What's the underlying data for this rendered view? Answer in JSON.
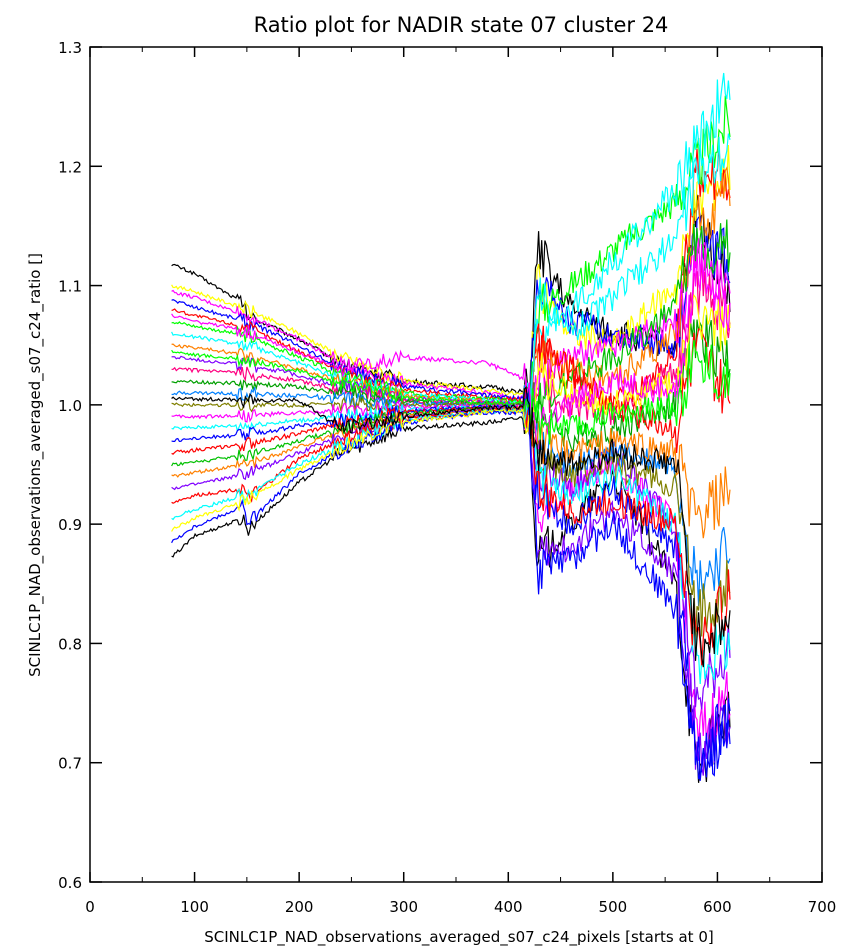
{
  "chart_data": {
    "type": "line",
    "title": "Ratio plot for NADIR state 07 cluster 24",
    "xlabel": "SCINLC1P_NAD_observations_averaged_s07_c24_pixels [starts at 0]",
    "ylabel": "SCINLC1P_NAD_observations_averaged_s07_c24_ratio []",
    "xlim": [
      0,
      700
    ],
    "ylim": [
      0.6,
      1.3
    ],
    "xticks": [
      0,
      100,
      200,
      300,
      400,
      500,
      600,
      700
    ],
    "yticks": [
      0.6,
      0.7,
      0.8,
      0.9,
      1.0,
      1.1,
      1.2,
      1.3
    ],
    "x_tick_labels": [
      "0",
      "100",
      "200",
      "300",
      "400",
      "500",
      "600",
      "700"
    ],
    "y_tick_labels": [
      "0.6",
      "0.7",
      "0.8",
      "0.9",
      "1.0",
      "1.1",
      "1.2",
      "1.3"
    ],
    "grid": false,
    "x_range_of_data": [
      78,
      612
    ],
    "series": [
      {
        "color": "#000000",
        "x": [
          78,
          100,
          147,
          150,
          200,
          240,
          300,
          380,
          420,
          428,
          460,
          500,
          560,
          580,
          612
        ],
        "y": [
          1.118,
          1.11,
          1.085,
          1.075,
          1.055,
          1.035,
          1.02,
          1.015,
          1.01,
          1.13,
          1.08,
          1.06,
          1.05,
          1.16,
          1.1
        ]
      },
      {
        "color": "#000000",
        "x": [
          78,
          100,
          147,
          150,
          200,
          240,
          300,
          380,
          420,
          428,
          460,
          500,
          560,
          580,
          612
        ],
        "y": [
          0.872,
          0.89,
          0.905,
          0.895,
          0.935,
          0.96,
          0.98,
          0.985,
          0.99,
          0.87,
          0.9,
          0.94,
          0.85,
          0.69,
          0.75
        ]
      },
      {
        "color": "#ffff00",
        "x": [
          78,
          100,
          150,
          200,
          240,
          300,
          380,
          420,
          428,
          460,
          500,
          560,
          580,
          612
        ],
        "y": [
          1.1,
          1.095,
          1.08,
          1.06,
          1.04,
          1.02,
          1.012,
          1.008,
          1.1,
          1.06,
          1.05,
          1.1,
          1.17,
          1.2
        ]
      },
      {
        "color": "#ff00ff",
        "x": [
          78,
          100,
          150,
          200,
          240,
          300,
          380,
          420,
          428,
          460,
          500,
          560,
          580,
          612
        ],
        "y": [
          1.095,
          1.09,
          1.075,
          1.055,
          1.035,
          1.018,
          1.01,
          1.005,
          0.9,
          0.93,
          0.95,
          0.9,
          0.72,
          0.76
        ]
      },
      {
        "color": "#0000ff",
        "x": [
          78,
          100,
          150,
          200,
          240,
          300,
          380,
          420,
          428,
          460,
          500,
          560,
          580,
          612
        ],
        "y": [
          1.088,
          1.082,
          1.07,
          1.05,
          1.03,
          1.015,
          1.008,
          1.004,
          1.11,
          1.07,
          1.06,
          1.05,
          1.14,
          1.12
        ]
      },
      {
        "color": "#ff0000",
        "x": [
          78,
          100,
          150,
          200,
          240,
          300,
          380,
          420,
          428,
          460,
          500,
          560,
          580,
          612
        ],
        "y": [
          1.08,
          1.075,
          1.065,
          1.045,
          1.028,
          1.012,
          1.006,
          1.003,
          1.05,
          1.02,
          1.0,
          1.04,
          1.2,
          1.19
        ]
      },
      {
        "color": "#00ff00",
        "x": [
          78,
          100,
          150,
          200,
          240,
          300,
          380,
          420,
          428,
          460,
          500,
          560,
          580,
          612
        ],
        "y": [
          1.07,
          1.066,
          1.058,
          1.04,
          1.025,
          1.01,
          1.005,
          1.002,
          1.08,
          1.1,
          1.13,
          1.17,
          1.2,
          1.24
        ]
      },
      {
        "color": "#00ffff",
        "x": [
          78,
          100,
          150,
          200,
          240,
          300,
          380,
          420,
          428,
          460,
          500,
          560,
          580,
          612
        ],
        "y": [
          1.06,
          1.057,
          1.05,
          1.035,
          1.022,
          1.009,
          1.004,
          1.001,
          1.06,
          1.08,
          1.12,
          1.18,
          1.22,
          1.27
        ]
      },
      {
        "color": "#ff8000",
        "x": [
          78,
          100,
          150,
          200,
          240,
          300,
          380,
          420,
          428,
          460,
          500,
          560,
          580,
          612
        ],
        "y": [
          1.05,
          1.048,
          1.042,
          1.03,
          1.02,
          1.007,
          1.003,
          1.0,
          1.04,
          1.03,
          1.02,
          1.06,
          1.15,
          1.18
        ]
      },
      {
        "color": "#8000ff",
        "x": [
          78,
          100,
          150,
          200,
          240,
          300,
          380,
          420,
          428,
          460,
          500,
          560,
          580,
          612
        ],
        "y": [
          1.04,
          1.038,
          1.034,
          1.025,
          1.016,
          1.005,
          1.002,
          1.0,
          0.95,
          0.93,
          0.96,
          0.9,
          0.75,
          0.8
        ]
      },
      {
        "color": "#ff0080",
        "x": [
          78,
          100,
          150,
          200,
          240,
          300,
          380,
          420,
          428,
          460,
          500,
          560,
          580,
          612
        ],
        "y": [
          1.03,
          1.029,
          1.026,
          1.02,
          1.013,
          1.004,
          1.001,
          0.999,
          1.02,
          1.0,
          0.99,
          1.03,
          1.1,
          1.08
        ]
      },
      {
        "color": "#00a000",
        "x": [
          78,
          100,
          150,
          200,
          240,
          300,
          380,
          420,
          428,
          460,
          500,
          560,
          580,
          612
        ],
        "y": [
          1.02,
          1.019,
          1.018,
          1.015,
          1.01,
          1.003,
          1.001,
          0.999,
          1.0,
          0.97,
          0.98,
          1.0,
          1.06,
          1.04
        ]
      },
      {
        "color": "#0080ff",
        "x": [
          78,
          100,
          150,
          200,
          240,
          300,
          380,
          420,
          428,
          460,
          500,
          560,
          580,
          612
        ],
        "y": [
          1.01,
          1.01,
          1.009,
          1.008,
          1.005,
          1.001,
          1.0,
          0.998,
          0.97,
          0.95,
          0.96,
          0.95,
          0.85,
          0.88
        ]
      },
      {
        "color": "#808000",
        "x": [
          78,
          100,
          150,
          200,
          240,
          300,
          380,
          420,
          428,
          460,
          500,
          560,
          580,
          612
        ],
        "y": [
          1.0,
          1.0,
          1.0,
          1.0,
          1.0,
          1.0,
          1.0,
          0.998,
          0.96,
          0.94,
          0.95,
          0.93,
          0.82,
          0.85
        ]
      },
      {
        "color": "#ff00ff",
        "x": [
          78,
          100,
          150,
          200,
          240,
          300,
          380,
          420,
          428,
          460,
          500,
          560,
          580,
          612
        ],
        "y": [
          0.99,
          0.99,
          0.991,
          0.993,
          0.995,
          0.998,
          0.999,
          0.998,
          1.02,
          1.04,
          1.05,
          1.07,
          1.12,
          1.1
        ]
      },
      {
        "color": "#00ffff",
        "x": [
          78,
          100,
          150,
          200,
          240,
          300,
          380,
          420,
          428,
          460,
          500,
          560,
          580,
          612
        ],
        "y": [
          0.98,
          0.981,
          0.983,
          0.987,
          0.99,
          0.996,
          0.998,
          0.997,
          0.94,
          0.92,
          0.94,
          0.9,
          0.78,
          0.8
        ]
      },
      {
        "color": "#0000ff",
        "x": [
          78,
          100,
          150,
          200,
          240,
          300,
          380,
          420,
          428,
          460,
          500,
          560,
          580,
          612
        ],
        "y": [
          0.97,
          0.972,
          0.975,
          0.982,
          0.987,
          0.995,
          0.998,
          0.997,
          0.92,
          0.9,
          0.93,
          0.88,
          0.7,
          0.72
        ]
      },
      {
        "color": "#ff0000",
        "x": [
          78,
          100,
          150,
          200,
          240,
          300,
          380,
          420,
          428,
          460,
          500,
          560,
          580,
          612
        ],
        "y": [
          0.96,
          0.962,
          0.967,
          0.976,
          0.984,
          0.994,
          0.997,
          0.997,
          0.93,
          0.91,
          0.92,
          0.9,
          0.8,
          0.84
        ]
      },
      {
        "color": "#00c000",
        "x": [
          78,
          100,
          150,
          200,
          240,
          300,
          380,
          420,
          428,
          460,
          500,
          560,
          580,
          612
        ],
        "y": [
          0.95,
          0.952,
          0.958,
          0.97,
          0.98,
          0.992,
          0.997,
          0.996,
          1.0,
          1.02,
          1.04,
          1.08,
          1.14,
          1.13
        ]
      },
      {
        "color": "#ff8000",
        "x": [
          78,
          100,
          150,
          200,
          240,
          300,
          380,
          420,
          428,
          460,
          500,
          560,
          580,
          612
        ],
        "y": [
          0.94,
          0.943,
          0.95,
          0.965,
          0.977,
          0.99,
          0.996,
          0.996,
          0.97,
          0.96,
          0.97,
          0.96,
          0.9,
          0.93
        ]
      },
      {
        "color": "#8000ff",
        "x": [
          78,
          100,
          150,
          200,
          240,
          300,
          380,
          420,
          428,
          460,
          500,
          560,
          580,
          612
        ],
        "y": [
          0.93,
          0.933,
          0.942,
          0.96,
          0.974,
          0.989,
          0.996,
          0.996,
          0.88,
          0.88,
          0.91,
          0.86,
          0.71,
          0.73
        ]
      },
      {
        "color": "#ff0000",
        "x": [
          78,
          100,
          147,
          150,
          200,
          240,
          300,
          380,
          420,
          428,
          460,
          500,
          560,
          580,
          612
        ],
        "y": [
          0.918,
          0.924,
          0.93,
          0.92,
          0.955,
          0.97,
          0.988,
          0.995,
          0.995,
          1.05,
          1.03,
          1.0,
          0.98,
          1.05,
          1.0
        ]
      },
      {
        "color": "#00ffff",
        "x": [
          78,
          100,
          150,
          200,
          240,
          300,
          380,
          420,
          428,
          460,
          500,
          560,
          580,
          612
        ],
        "y": [
          0.905,
          0.912,
          0.925,
          0.95,
          0.966,
          0.987,
          0.995,
          0.995,
          1.09,
          1.06,
          1.09,
          1.14,
          1.19,
          1.22
        ]
      },
      {
        "color": "#0000ff",
        "x": [
          78,
          100,
          147,
          150,
          200,
          240,
          300,
          380,
          420,
          428,
          460,
          500,
          560,
          580,
          612
        ],
        "y": [
          0.885,
          0.898,
          0.915,
          0.9,
          0.942,
          0.962,
          0.985,
          0.994,
          0.994,
          0.86,
          0.87,
          0.9,
          0.83,
          0.7,
          0.74
        ]
      },
      {
        "color": "#ffff00",
        "x": [
          78,
          100,
          150,
          200,
          240,
          300,
          380,
          420,
          428,
          460,
          500,
          560,
          580,
          612
        ],
        "y": [
          0.895,
          0.905,
          0.92,
          0.946,
          0.964,
          0.986,
          0.994,
          0.995,
          1.03,
          1.01,
          1.0,
          1.02,
          1.08,
          1.06
        ]
      },
      {
        "color": "#ff00ff",
        "x": [
          78,
          100,
          150,
          200,
          240,
          300,
          380,
          420,
          428,
          460,
          500,
          560,
          580,
          612
        ],
        "y": [
          1.075,
          1.07,
          1.062,
          1.044,
          1.03,
          1.04,
          1.035,
          1.02,
          0.98,
          1.0,
          1.02,
          1.01,
          1.12,
          1.08
        ]
      },
      {
        "color": "#00ff00",
        "x": [
          78,
          100,
          150,
          200,
          240,
          300,
          380,
          420,
          428,
          460,
          500,
          560,
          580,
          612
        ],
        "y": [
          1.045,
          1.042,
          1.038,
          1.028,
          1.018,
          1.006,
          1.002,
          1.0,
          0.99,
          0.98,
          0.99,
          1.0,
          1.04,
          1.02
        ]
      },
      {
        "color": "#000000",
        "x": [
          78,
          100,
          150,
          200,
          240,
          300,
          380,
          420,
          428,
          460,
          500,
          560,
          580,
          612
        ],
        "y": [
          1.005,
          1.005,
          1.004,
          1.004,
          0.98,
          0.99,
          0.998,
          0.998,
          0.96,
          0.95,
          0.96,
          0.95,
          0.8,
          0.82
        ]
      }
    ]
  }
}
